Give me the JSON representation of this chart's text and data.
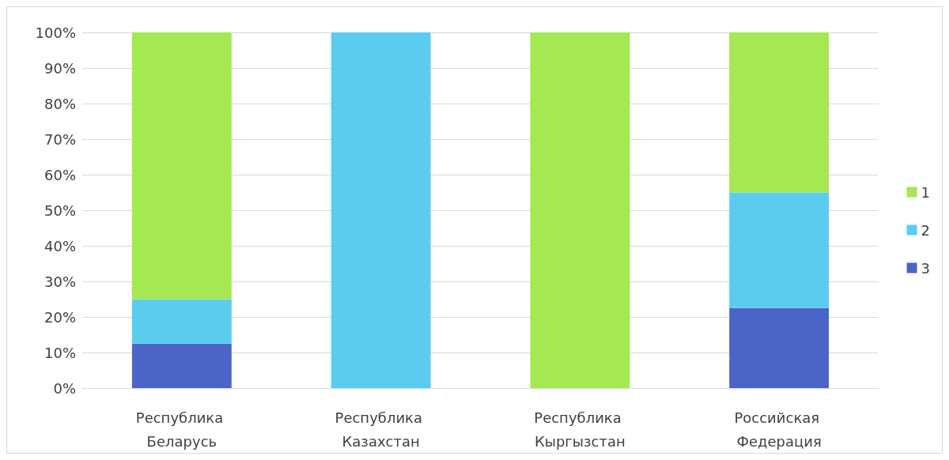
{
  "chart_data": {
    "type": "bar",
    "stacked": true,
    "categories": [
      "Республика Беларусь",
      "Республика Казахстан",
      "Республика Кыргызстан",
      "Российская Федерация"
    ],
    "series": [
      {
        "name": "3",
        "color": "#4b64c8",
        "values": [
          12.5,
          0,
          0,
          22.5
        ]
      },
      {
        "name": "2",
        "color": "#5bccf0",
        "values": [
          12.5,
          100,
          0,
          32.5
        ]
      },
      {
        "name": "1",
        "color": "#a4e852",
        "values": [
          75,
          0,
          100,
          45
        ]
      }
    ],
    "ylim": [
      0,
      100
    ],
    "yticks": [
      {
        "value": 0,
        "label": "0%"
      },
      {
        "value": 10,
        "label": "10%"
      },
      {
        "value": 20,
        "label": "20%"
      },
      {
        "value": 30,
        "label": "30%"
      },
      {
        "value": 40,
        "label": "40%"
      },
      {
        "value": 50,
        "label": "50%"
      },
      {
        "value": 60,
        "label": "60%"
      },
      {
        "value": 70,
        "label": "70%"
      },
      {
        "value": 80,
        "label": "80%"
      },
      {
        "value": 90,
        "label": "90%"
      },
      {
        "value": 100,
        "label": "100%"
      }
    ],
    "grid": "y",
    "legend": "right"
  }
}
